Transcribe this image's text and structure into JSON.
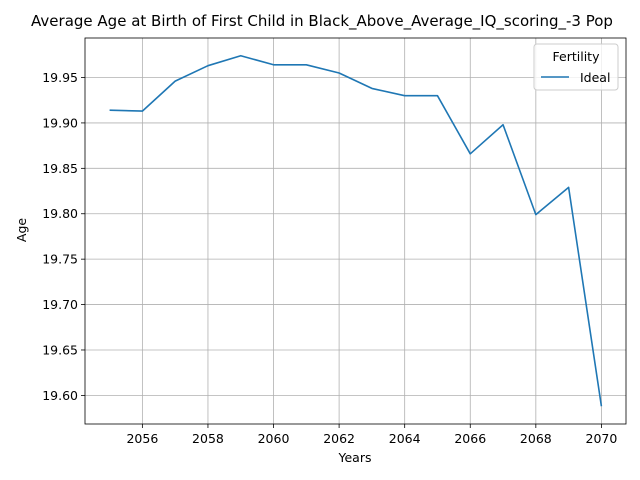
{
  "chart_data": {
    "type": "line",
    "title": "Average Age at Birth of First Child in Black_Above_Average_IQ_scoring_-3 Pop",
    "xlabel": "Years",
    "ylabel": "Age",
    "xlim": [
      2054.25,
      2070.75
    ],
    "ylim": [
      19.5685,
      19.9935
    ],
    "xticks": [
      2056,
      2058,
      2060,
      2062,
      2064,
      2066,
      2068,
      2070
    ],
    "xtick_labels": [
      "2056",
      "2058",
      "2060",
      "2062",
      "2064",
      "2066",
      "2068",
      "2070"
    ],
    "yticks": [
      19.6,
      19.65,
      19.7,
      19.75,
      19.8,
      19.85,
      19.9,
      19.95
    ],
    "ytick_labels": [
      "19.60",
      "19.65",
      "19.70",
      "19.75",
      "19.80",
      "19.85",
      "19.90",
      "19.95"
    ],
    "grid": true,
    "legend": {
      "title": "Fertility",
      "placement": "top-right"
    },
    "x": [
      2055,
      2056,
      2057,
      2058,
      2059,
      2060,
      2061,
      2062,
      2063,
      2064,
      2065,
      2066,
      2067,
      2068,
      2069,
      2070
    ],
    "series": [
      {
        "name": "Ideal",
        "color": "#1f77b4",
        "values": [
          19.914,
          19.913,
          19.946,
          19.963,
          19.974,
          19.964,
          19.964,
          19.955,
          19.938,
          19.93,
          19.93,
          19.866,
          19.898,
          19.799,
          19.829,
          19.588
        ]
      }
    ]
  }
}
